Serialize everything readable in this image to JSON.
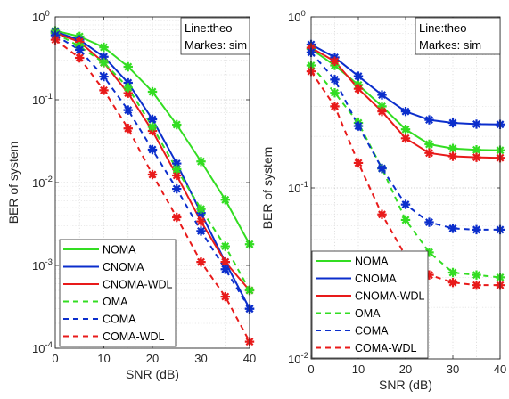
{
  "chart_data": [
    {
      "type": "line",
      "xlabel": "SNR (dB)",
      "ylabel": "BER of system",
      "xlim": [
        0,
        40
      ],
      "ylim": [
        0.0001,
        1
      ],
      "yscale": "log",
      "grid": true,
      "xticks": [
        "0",
        "10",
        "20",
        "30",
        "40"
      ],
      "yticks": [
        {
          "base": "10",
          "exp": "-4"
        },
        {
          "base": "10",
          "exp": "-3"
        },
        {
          "base": "10",
          "exp": "-2"
        },
        {
          "base": "10",
          "exp": "-1"
        },
        {
          "base": "10",
          "exp": "0"
        }
      ],
      "annotation": [
        "Line:theo",
        "Markes: sim"
      ],
      "legend_position": "bottom-left",
      "x": [
        0,
        5,
        10,
        15,
        20,
        25,
        30,
        35,
        40
      ],
      "series": [
        {
          "name": "NOMA",
          "color": "#33dd22",
          "dash": false,
          "values": [
            0.68,
            0.58,
            0.43,
            0.25,
            0.125,
            0.05,
            0.018,
            0.0062,
            0.0018
          ]
        },
        {
          "name": "CNOMA",
          "color": "#0b2ecc",
          "dash": false,
          "values": [
            0.66,
            0.53,
            0.33,
            0.16,
            0.058,
            0.017,
            0.0043,
            0.0011,
            0.0003
          ]
        },
        {
          "name": "CNOMA-WDL",
          "color": "#e81a1a",
          "dash": false,
          "values": [
            0.64,
            0.5,
            0.28,
            0.12,
            0.042,
            0.0122,
            0.0034,
            0.0011,
            0.0005
          ]
        },
        {
          "name": "OMA",
          "color": "#33dd22",
          "dash": true,
          "values": [
            0.64,
            0.44,
            0.28,
            0.14,
            0.047,
            0.0145,
            0.0048,
            0.0017,
            0.0005
          ]
        },
        {
          "name": "COMA",
          "color": "#0b2ecc",
          "dash": true,
          "values": [
            0.6,
            0.4,
            0.19,
            0.075,
            0.025,
            0.0084,
            0.0026,
            0.0009,
            0.0003
          ]
        },
        {
          "name": "COMA-WDL",
          "color": "#e81a1a",
          "dash": true,
          "values": [
            0.53,
            0.32,
            0.13,
            0.045,
            0.0125,
            0.0038,
            0.0011,
            0.00042,
            0.00012
          ]
        }
      ]
    },
    {
      "type": "line",
      "xlabel": "SNR (dB)",
      "ylabel": "BER of system",
      "xlim": [
        0,
        40
      ],
      "ylim": [
        0.01,
        1
      ],
      "yscale": "log",
      "grid": true,
      "xticks": [
        "0",
        "10",
        "20",
        "30",
        "40"
      ],
      "yticks": [
        {
          "base": "10",
          "exp": "-2"
        },
        {
          "base": "10",
          "exp": "-1"
        },
        {
          "base": "10",
          "exp": "0"
        }
      ],
      "annotation": [
        "Line:theo",
        "Markes: sim"
      ],
      "legend_position": "bottom-left",
      "x": [
        0,
        5,
        10,
        15,
        20,
        25,
        30,
        35,
        40
      ],
      "series": [
        {
          "name": "NOMA",
          "color": "#33dd22",
          "dash": false,
          "values": [
            0.65,
            0.52,
            0.4,
            0.3,
            0.22,
            0.18,
            0.17,
            0.167,
            0.166
          ]
        },
        {
          "name": "CNOMA",
          "color": "#0b2ecc",
          "dash": false,
          "values": [
            0.69,
            0.58,
            0.45,
            0.35,
            0.28,
            0.25,
            0.24,
            0.236,
            0.235
          ]
        },
        {
          "name": "CNOMA-WDL",
          "color": "#e81a1a",
          "dash": false,
          "values": [
            0.66,
            0.55,
            0.38,
            0.28,
            0.195,
            0.16,
            0.153,
            0.151,
            0.15
          ]
        },
        {
          "name": "OMA",
          "color": "#33dd22",
          "dash": true,
          "values": [
            0.52,
            0.36,
            0.24,
            0.13,
            0.065,
            0.042,
            0.032,
            0.031,
            0.03
          ]
        },
        {
          "name": "COMA",
          "color": "#0b2ecc",
          "dash": true,
          "values": [
            0.62,
            0.43,
            0.23,
            0.13,
            0.08,
            0.063,
            0.058,
            0.057,
            0.057
          ]
        },
        {
          "name": "COMA-WDL",
          "color": "#e81a1a",
          "dash": true,
          "values": [
            0.48,
            0.3,
            0.14,
            0.07,
            0.04,
            0.031,
            0.028,
            0.027,
            0.027
          ]
        }
      ]
    }
  ]
}
